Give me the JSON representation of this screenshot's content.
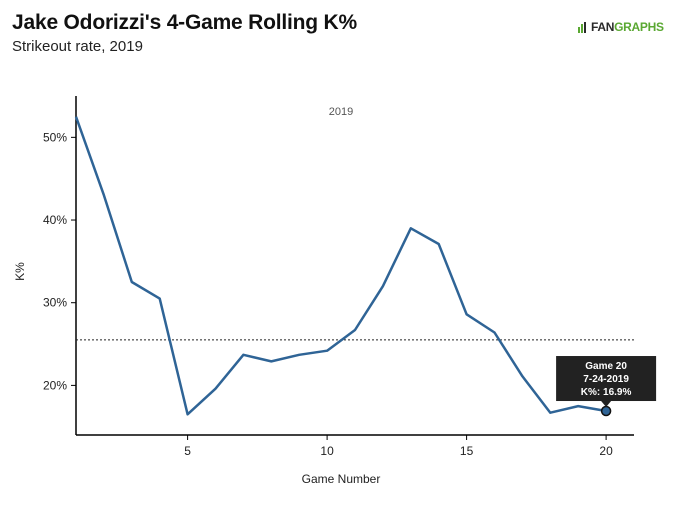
{
  "header": {
    "title": "Jake Odorizzi's 4-Game Rolling K%",
    "subtitle": "Strikeout rate, 2019"
  },
  "logo": {
    "part1": "FAN",
    "part2": "GRAPHS"
  },
  "chart_data": {
    "type": "line",
    "title": "Jake Odorizzi's 4-Game Rolling K%",
    "subtitle": "Strikeout rate, 2019",
    "panel_label": "2019",
    "xlabel": "Game Number",
    "ylabel": "K%",
    "xlim": [
      1,
      21
    ],
    "ylim": [
      14,
      55
    ],
    "xticks": [
      5,
      10,
      15,
      20
    ],
    "yticks": [
      20,
      30,
      40,
      50
    ],
    "ytick_suffix": "%",
    "reference_line": 25.5,
    "line_color": "#2f6496",
    "x": [
      1,
      2,
      3,
      4,
      5,
      6,
      7,
      8,
      9,
      10,
      11,
      12,
      13,
      14,
      15,
      16,
      17,
      18,
      19,
      20
    ],
    "y": [
      52.5,
      43.0,
      32.5,
      30.5,
      16.5,
      19.6,
      23.7,
      22.9,
      23.7,
      24.2,
      26.7,
      32.0,
      39.0,
      37.1,
      28.6,
      26.4,
      21.1,
      16.7,
      17.5,
      16.9
    ],
    "highlight": {
      "x": 20,
      "y": 16.9
    },
    "tooltip": {
      "line1": "Game 20",
      "line2": "7-24-2019",
      "line3": "K%: 16.9%"
    }
  }
}
